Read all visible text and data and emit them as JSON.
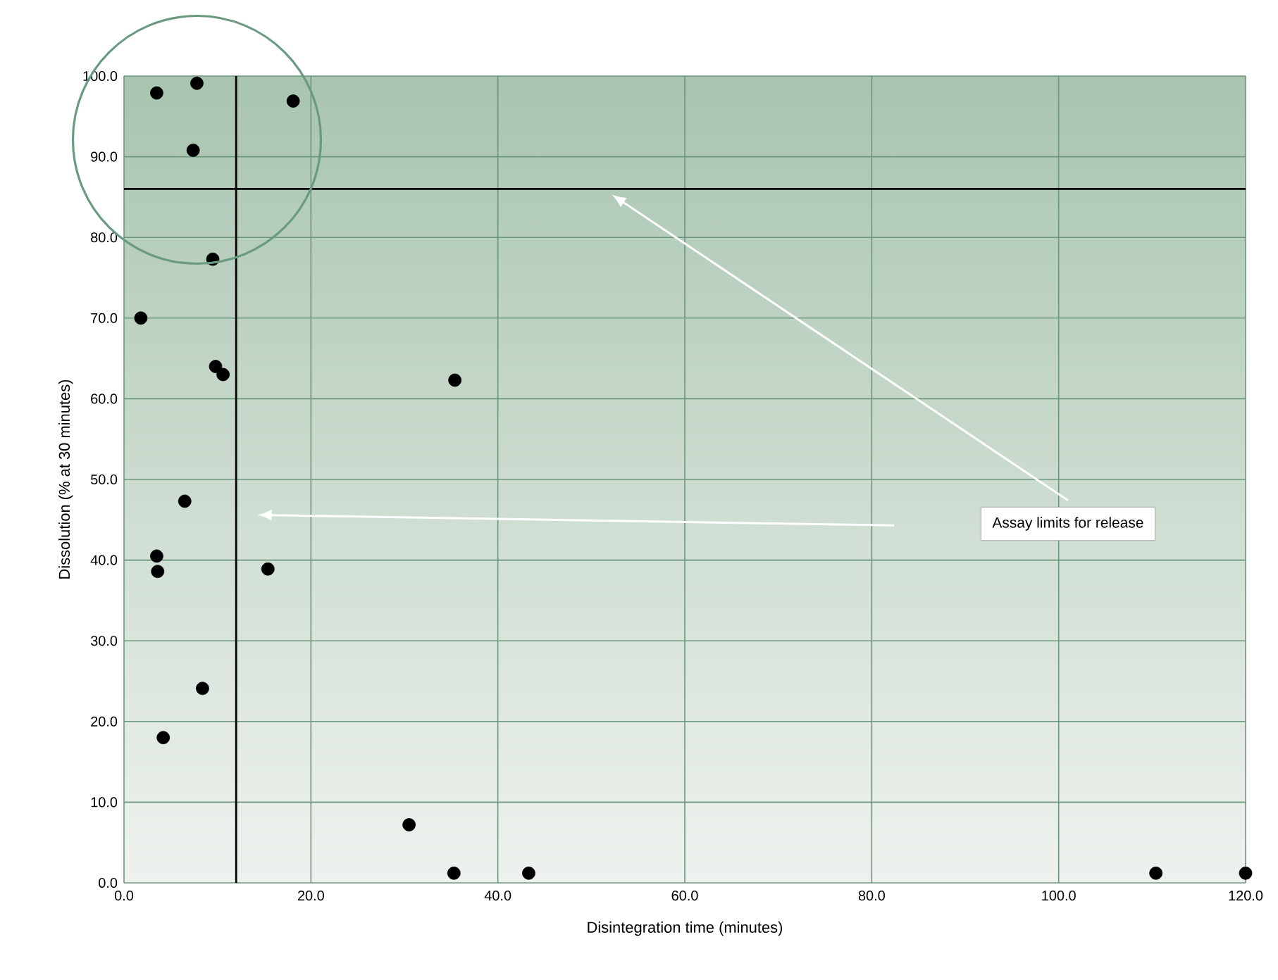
{
  "chart_data": {
    "type": "scatter",
    "xlabel": "Disintegration time (minutes)",
    "ylabel": "Dissolution (% at 30 minutes)",
    "x": [
      3.5,
      7.8,
      18.1,
      7.4,
      9.5,
      1.8,
      9.8,
      10.6,
      35.4,
      6.5,
      3.5,
      3.6,
      15.4,
      8.4,
      4.2,
      30.5,
      35.3,
      43.3,
      110.4,
      120
    ],
    "values": [
      97.9,
      99.1,
      96.9,
      90.8,
      77.3,
      70.0,
      64.0,
      63.0,
      62.3,
      47.3,
      40.5,
      38.6,
      38.9,
      24.1,
      18.0,
      7.2,
      1.2,
      1.2,
      1.2,
      1.2
    ],
    "color": "#000000",
    "marker": "circle",
    "grid": true,
    "xlim": [
      0,
      120
    ],
    "ylim": [
      0,
      100
    ],
    "xticks": [
      {
        "value": 0,
        "label": "0.0"
      },
      {
        "value": 20,
        "label": "20.0"
      },
      {
        "value": 40,
        "label": "40.0"
      },
      {
        "value": 60,
        "label": "60.0"
      },
      {
        "value": 80,
        "label": "80.0"
      },
      {
        "value": 100,
        "label": "100.0"
      },
      {
        "value": 120,
        "label": "120.0"
      }
    ],
    "yticks": [
      {
        "value": 0,
        "label": "0.0"
      },
      {
        "value": 10,
        "label": "10.0"
      },
      {
        "value": 20,
        "label": "20.0"
      },
      {
        "value": 30,
        "label": "30.0"
      },
      {
        "value": 40,
        "label": "40.0"
      },
      {
        "value": 50,
        "label": "50.0"
      },
      {
        "value": 60,
        "label": "60.0"
      },
      {
        "value": 70,
        "label": "70.0"
      },
      {
        "value": 80,
        "label": "80.0"
      },
      {
        "value": 90,
        "label": "90.0"
      },
      {
        "value": 100,
        "label": "100.0"
      }
    ],
    "ref_lines": [
      {
        "axis": "x",
        "value": 12,
        "color": "#000000"
      },
      {
        "axis": "y",
        "value": 86,
        "color": "#000000"
      }
    ],
    "annotations": [
      "Assay limits for release"
    ]
  }
}
